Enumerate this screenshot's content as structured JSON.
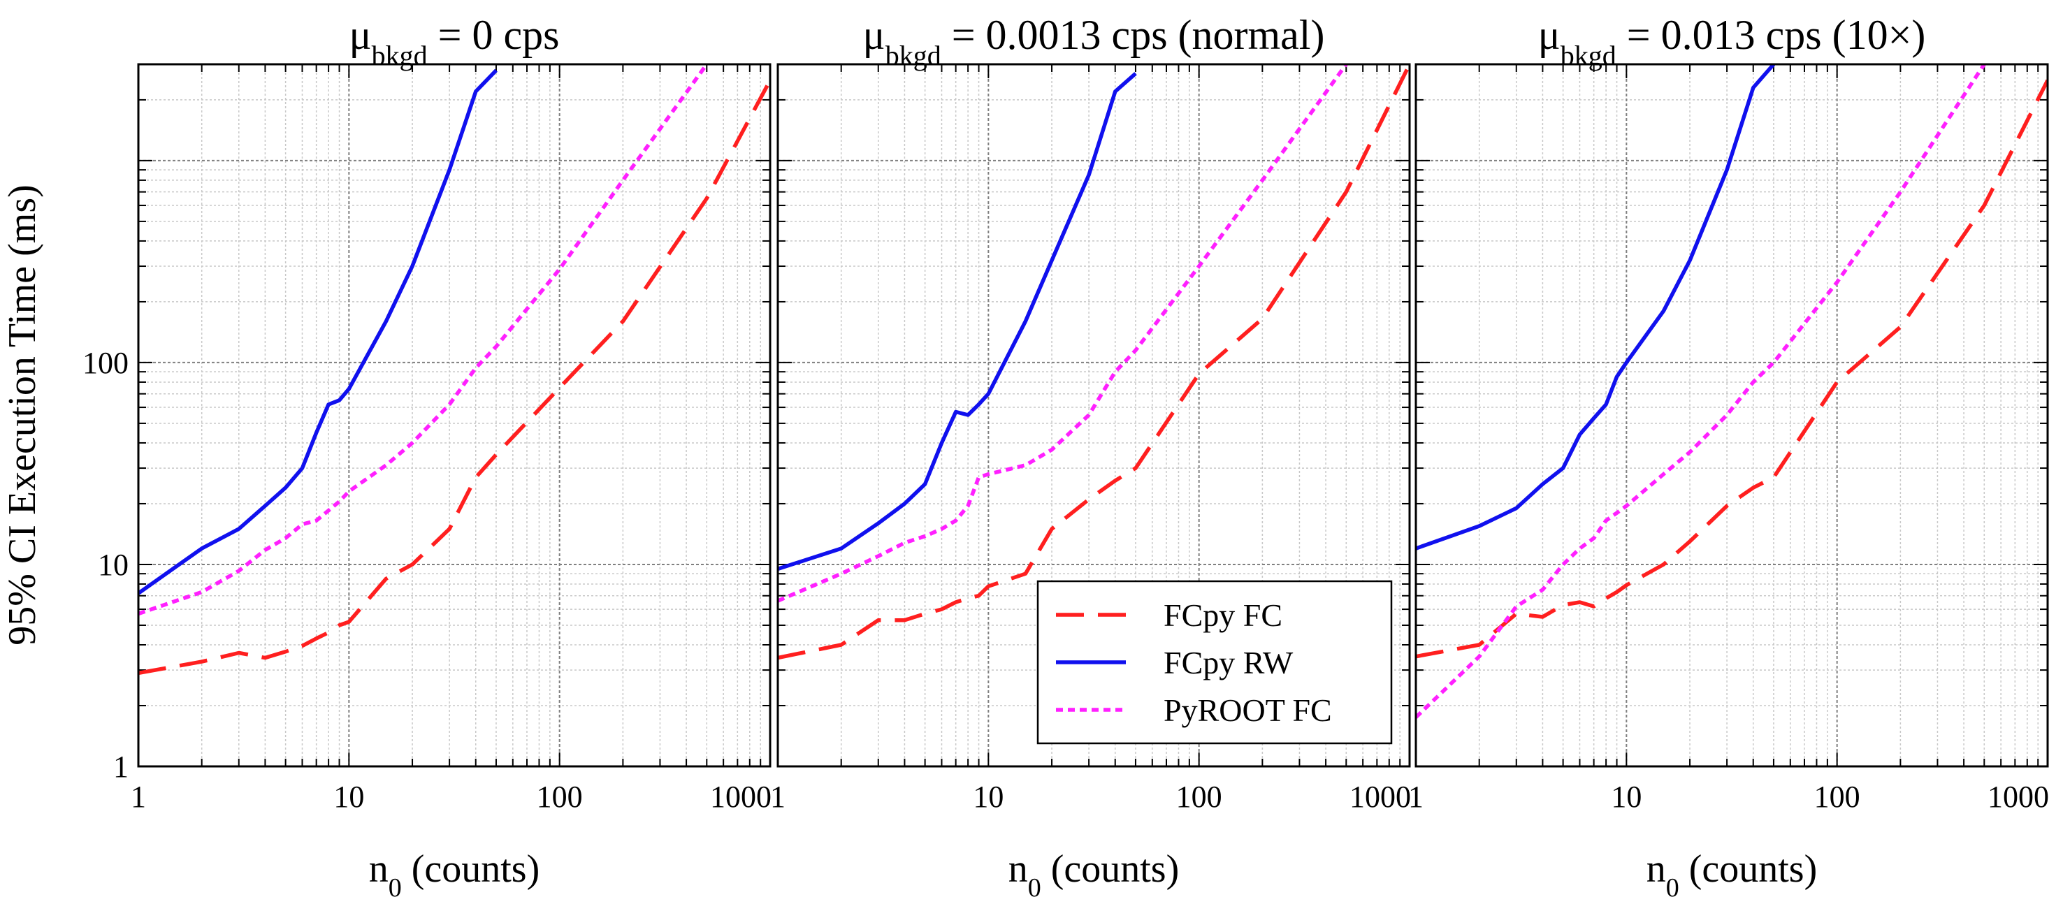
{
  "figure": {
    "ylabel": "95% CI Execution Time (ms)",
    "yticks": [
      {
        "value": 1,
        "label": "1"
      },
      {
        "value": 10,
        "label": "10"
      },
      {
        "value": 100,
        "label": "100"
      }
    ],
    "colors": {
      "fc": "#ff1f1f",
      "rw": "#1010ee",
      "pyroot": "#ff20ff",
      "grid_major": "#808080",
      "grid_minor": "#c8c8c8"
    }
  },
  "legend": {
    "entries": [
      {
        "label": "FCpy FC",
        "style": "long-dash",
        "color": "#ff1f1f"
      },
      {
        "label": "FCpy RW",
        "style": "solid",
        "color": "#1010ee"
      },
      {
        "label": "PyROOT FC",
        "style": "dotted",
        "color": "#ff20ff"
      }
    ],
    "placement": "lower-right of middle panel"
  },
  "chart_data": [
    {
      "type": "line",
      "title_main": "μ",
      "title_sub": "bkgd",
      "title_rest": " = 0 cps",
      "xlabel_main": "n",
      "xlabel_sub": "0",
      "xlabel_rest": " (counts)",
      "xscale": "log",
      "yscale": "log",
      "xlim": [
        1,
        1000
      ],
      "ylim": [
        1,
        3000
      ],
      "xticks": [
        {
          "value": 1,
          "label": "1"
        },
        {
          "value": 10,
          "label": "10"
        },
        {
          "value": 100,
          "label": "100"
        },
        {
          "value": 1000,
          "label": "1000"
        }
      ],
      "grid": true,
      "series": [
        {
          "name": "FCpy FC",
          "x": [
            1,
            2,
            3,
            4,
            5,
            6,
            7,
            8,
            9,
            10,
            15,
            20,
            30,
            40,
            50,
            100,
            200,
            500,
            1000
          ],
          "y": [
            2.9,
            3.3,
            3.65,
            3.45,
            3.7,
            3.95,
            4.3,
            4.6,
            5.0,
            5.2,
            8.5,
            10,
            15,
            27,
            35,
            75,
            160,
            650,
            2500
          ]
        },
        {
          "name": "FCpy RW",
          "x": [
            1,
            2,
            3,
            4,
            5,
            6,
            7,
            8,
            9,
            10,
            15,
            20,
            30,
            40,
            50
          ],
          "y": [
            7.2,
            12,
            15,
            19.5,
            24,
            30,
            45,
            62,
            65,
            74,
            160,
            300,
            900,
            2200,
            2800
          ]
        },
        {
          "name": "PyROOT FC",
          "x": [
            1,
            2,
            3,
            4,
            5,
            6,
            7,
            8,
            9,
            10,
            15,
            20,
            30,
            40,
            50,
            100,
            200,
            500
          ],
          "y": [
            5.7,
            7.3,
            9.3,
            11.8,
            13.5,
            15.8,
            16.5,
            18.5,
            20.5,
            23,
            31,
            40,
            62,
            94,
            120,
            290,
            800,
            3000
          ]
        }
      ]
    },
    {
      "type": "line",
      "title_main": "μ",
      "title_sub": "bkgd",
      "title_rest": " = 0.0013 cps (normal)",
      "xlabel_main": "n",
      "xlabel_sub": "0",
      "xlabel_rest": " (counts)",
      "xscale": "log",
      "yscale": "log",
      "xlim": [
        1,
        1000
      ],
      "ylim": [
        1,
        3000
      ],
      "xticks": [
        {
          "value": 1,
          "label": "1"
        },
        {
          "value": 10,
          "label": "10"
        },
        {
          "value": 100,
          "label": "100"
        },
        {
          "value": 1000,
          "label": "1000"
        }
      ],
      "grid": true,
      "series": [
        {
          "name": "FCpy FC",
          "x": [
            1,
            2,
            3,
            4,
            5,
            6,
            7,
            8,
            9,
            10,
            15,
            20,
            30,
            40,
            50,
            100,
            200,
            500,
            1000
          ],
          "y": [
            3.45,
            4.0,
            5.3,
            5.3,
            5.7,
            6.0,
            6.5,
            6.8,
            7.0,
            7.8,
            9.0,
            15,
            21,
            26,
            30,
            88,
            165,
            700,
            3000
          ]
        },
        {
          "name": "FCpy RW",
          "x": [
            1,
            2,
            3,
            4,
            5,
            6,
            7,
            8,
            9,
            10,
            15,
            20,
            30,
            40,
            50
          ],
          "y": [
            9.5,
            12,
            16,
            20,
            25,
            40,
            57,
            55,
            62,
            70,
            160,
            320,
            850,
            2200,
            2700
          ]
        },
        {
          "name": "PyROOT FC",
          "x": [
            1,
            2,
            3,
            4,
            5,
            6,
            7,
            8,
            9,
            10,
            15,
            20,
            30,
            40,
            50,
            100,
            200,
            500
          ],
          "y": [
            6.6,
            9.0,
            11,
            12.8,
            13.8,
            15,
            16.5,
            19.5,
            27,
            28,
            31,
            37,
            55,
            90,
            115,
            300,
            800,
            3000
          ]
        }
      ]
    },
    {
      "type": "line",
      "title_main": "μ",
      "title_sub": "bkgd",
      "title_rest": " = 0.013 cps (10×)",
      "xlabel_main": "n",
      "xlabel_sub": "0",
      "xlabel_rest": " (counts)",
      "xscale": "log",
      "yscale": "log",
      "xlim": [
        1,
        1000
      ],
      "ylim": [
        1,
        3000
      ],
      "xticks": [
        {
          "value": 1,
          "label": "1"
        },
        {
          "value": 10,
          "label": "10"
        },
        {
          "value": 100,
          "label": "100"
        },
        {
          "value": 1000,
          "label": "1000"
        }
      ],
      "grid": true,
      "series": [
        {
          "name": "FCpy FC",
          "x": [
            1,
            2,
            3,
            4,
            5,
            6,
            7,
            8,
            9,
            10,
            15,
            20,
            30,
            40,
            50,
            100,
            200,
            500,
            1000
          ],
          "y": [
            3.5,
            4.0,
            5.7,
            5.5,
            6.3,
            6.5,
            6.2,
            6.8,
            7.3,
            7.9,
            10,
            13,
            19.5,
            24,
            27,
            80,
            150,
            600,
            2500
          ]
        },
        {
          "name": "FCpy RW",
          "x": [
            1,
            2,
            3,
            4,
            5,
            6,
            7,
            8,
            9,
            10,
            15,
            20,
            30,
            40,
            50
          ],
          "y": [
            12,
            15.5,
            19,
            25,
            30,
            44,
            53,
            62,
            85,
            100,
            180,
            320,
            900,
            2300,
            3000
          ]
        },
        {
          "name": "PyROOT FC",
          "x": [
            1,
            2,
            3,
            4,
            5,
            6,
            7,
            8,
            9,
            10,
            15,
            20,
            30,
            40,
            50,
            100,
            200,
            500
          ],
          "y": [
            1.75,
            3.5,
            6.2,
            7.5,
            10,
            12,
            13.5,
            16.5,
            18,
            19.5,
            28,
            36,
            55,
            80,
            100,
            250,
            700,
            3000
          ]
        }
      ]
    }
  ]
}
